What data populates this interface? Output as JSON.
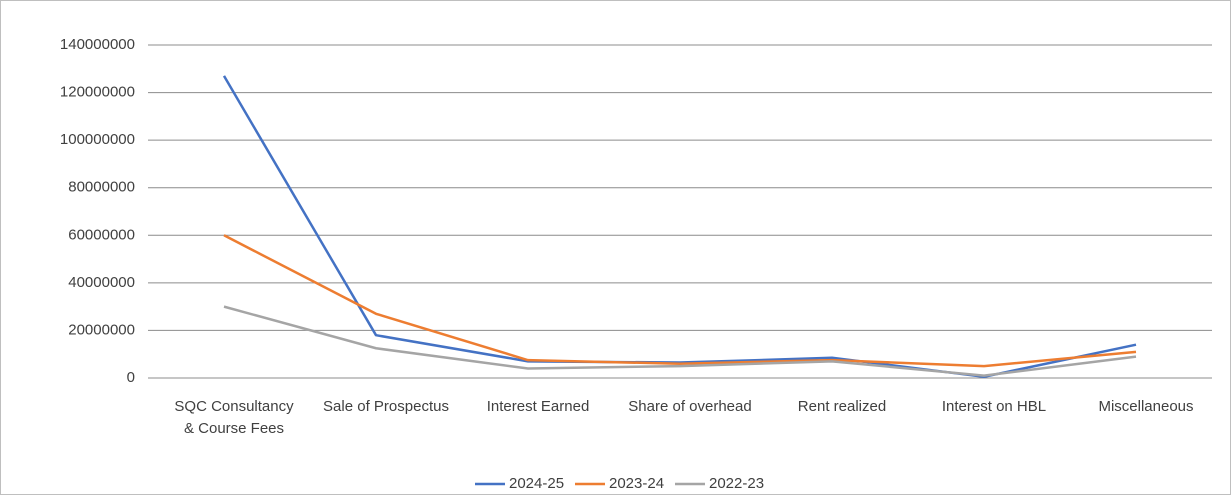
{
  "chart_data": {
    "type": "line",
    "categories": [
      "SQC Consultancy & Course Fees",
      "Sale of Prospectus",
      "Interest Earned",
      "Share of overhead",
      "Rent realized",
      "Interest on HBL",
      "Miscellaneous"
    ],
    "series": [
      {
        "name": "2024-25",
        "color": "#4472c4",
        "values": [
          127000000,
          18000000,
          7000000,
          6500000,
          8500000,
          500000,
          14000000
        ]
      },
      {
        "name": "2023-24",
        "color": "#ed7d31",
        "values": [
          60000000,
          27000000,
          7500000,
          6000000,
          7500000,
          5000000,
          11000000
        ]
      },
      {
        "name": "2022-23",
        "color": "#a5a5a5",
        "values": [
          30000000,
          12500000,
          4000000,
          5000000,
          7000000,
          1000000,
          9000000
        ]
      }
    ],
    "ylim": [
      0,
      140000000
    ],
    "yticks": [
      0,
      20000000,
      40000000,
      60000000,
      80000000,
      100000000,
      120000000,
      140000000
    ],
    "grid": true,
    "legend": "bottom"
  }
}
